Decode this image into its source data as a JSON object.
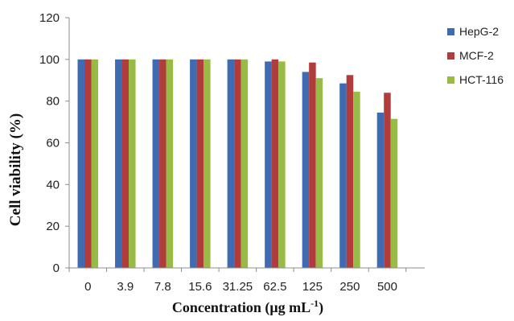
{
  "chart_data": {
    "type": "bar",
    "categories": [
      "0",
      "3.9",
      "7.8",
      "15.6",
      "31.25",
      "62.5",
      "125",
      "250",
      "500"
    ],
    "series": [
      {
        "name": "HepG-2",
        "color": "#3f6bb3",
        "values": [
          100,
          100,
          100,
          100,
          100,
          99,
          94,
          88.5,
          74.5
        ]
      },
      {
        "name": "MCF-2",
        "color": "#b23b3b",
        "values": [
          100,
          100,
          100,
          100,
          100,
          100,
          98.5,
          92.5,
          84
        ]
      },
      {
        "name": "HCT-116",
        "color": "#97bb45",
        "values": [
          100,
          100,
          100,
          100,
          100,
          99,
          91,
          84.5,
          71.5
        ]
      }
    ],
    "ylim": [
      0,
      120
    ],
    "yticks": [
      "0",
      "20",
      "40",
      "60",
      "80",
      "100",
      "120"
    ],
    "ylabel": "Cell viability (%)",
    "xlabel_main": "Concentration (μg mL",
    "xlabel_sup": "-1",
    "xlabel_close": ")",
    "legend_position": "right",
    "grid": false
  }
}
